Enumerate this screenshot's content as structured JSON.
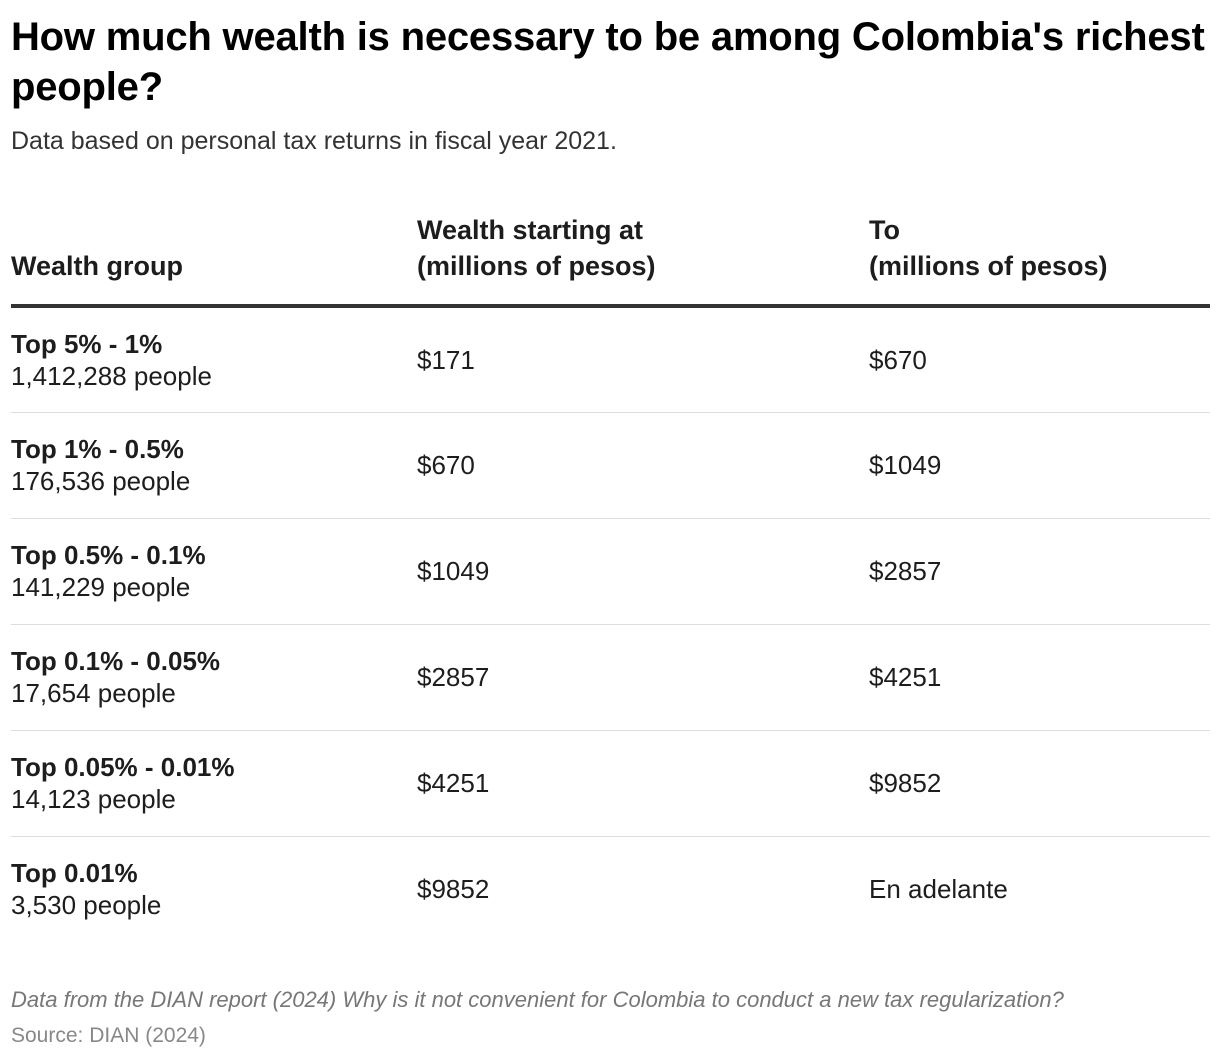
{
  "chart_data": {
    "type": "table",
    "title": "How much wealth is necessary to be among Colombia's richest people?",
    "subtitle": "Data based on personal tax returns in fiscal year 2021.",
    "columns": {
      "group": "Wealth group",
      "from_line1": "Wealth starting at",
      "from_line2": "(millions of pesos)",
      "to_line1": "To",
      "to_line2": "(millions of pesos)"
    },
    "rows": [
      {
        "group": "Top 5% - 1%",
        "people": "1,412,288 people",
        "from": "$171",
        "to": "$670"
      },
      {
        "group": "Top 1% - 0.5%",
        "people": "176,536 people",
        "from": "$670",
        "to": "$1049"
      },
      {
        "group": "Top 0.5% - 0.1%",
        "people": "141,229 people",
        "from": "$1049",
        "to": "$2857"
      },
      {
        "group": "Top 0.1% - 0.05%",
        "people": "17,654 people",
        "from": "$2857",
        "to": "$4251"
      },
      {
        "group": "Top 0.05% - 0.01%",
        "people": "14,123 people",
        "from": "$4251",
        "to": "$9852"
      },
      {
        "group": "Top 0.01%",
        "people": "3,530 people",
        "from": "$9852",
        "to": "En adelante"
      }
    ],
    "note": "Data from the DIAN report (2024) Why is it not convenient for Colombia to conduct a new tax regularization?",
    "source": "Source: DIAN (2024)"
  }
}
